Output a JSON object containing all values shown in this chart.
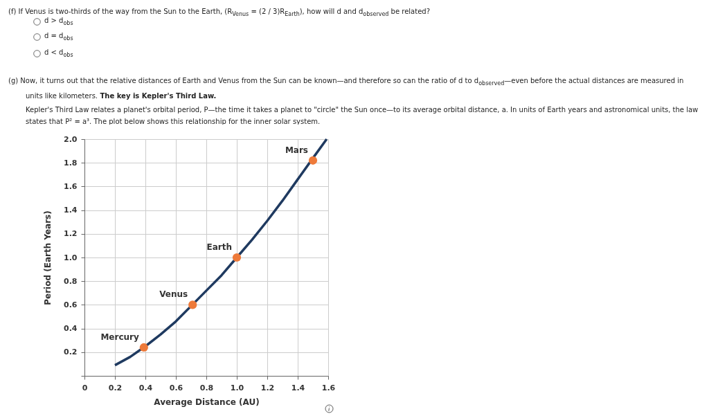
{
  "chart_data": {
    "type": "line",
    "xlabel": "Average Distance (AU)",
    "ylabel": "Period (Earth Years)",
    "xlim": [
      0,
      1.6
    ],
    "ylim": [
      0,
      2.0
    ],
    "xticks": [
      0,
      0.2,
      0.4,
      0.6,
      0.8,
      {
        "value": 1,
        "label": "1.0"
      },
      1.2,
      1.4,
      1.6
    ],
    "yticks": [
      {
        "value": 0,
        "label": null
      },
      0.2,
      0.4,
      0.6,
      0.8,
      {
        "value": 1,
        "label": "1.0"
      },
      1.2,
      1.4,
      1.6,
      1.8,
      {
        "value": 2,
        "label": "2.0"
      }
    ],
    "grid": true,
    "series": [
      {
        "type": "line",
        "color": "#1f3a60",
        "x": [
          0.2,
          0.3,
          0.4,
          0.5,
          0.6,
          0.7,
          0.8,
          0.9,
          1.0,
          1.1,
          1.2,
          1.3,
          1.4,
          1.5,
          1.59
        ],
        "values": [
          0.09,
          0.16,
          0.25,
          0.35,
          0.46,
          0.59,
          0.72,
          0.85,
          1.0,
          1.15,
          1.31,
          1.48,
          1.66,
          1.84,
          2.0
        ]
      },
      {
        "type": "scatter",
        "marker": "circle",
        "color": "#ee7a3a",
        "x": [
          0.39,
          0.71,
          1.0,
          1.5
        ],
        "values": [
          0.24,
          0.6,
          1.0,
          1.82
        ]
      }
    ],
    "annotations": [
      "(f)  If Venus is two-thirds of the way from the Sun to the Earth, (R$_{Venus}$ = (2 / 3)R$_{Earth}$), how will d and d$_{observed}$ be related?",
      "d > d$_{obs}$",
      "d = d$_{obs}$",
      "d < d$_{obs}$",
      "(g)  Now, it turns out that the relative distances of Earth and Venus from the Sun can be known—and therefore so can the ratio of d to d$_{observed}$—even before the actual distances are measured in units like kilometers.",
      "The key is Kepler's Third Law.",
      "Kepler's Third Law relates a planet's orbital period, P—the time it takes a planet to \"circle\" the Sun once—to its average orbital distance, a. In units of Earth years and astronomical units, the law states that P² = a³. The plot below shows this relationship for the inner solar system.",
      {
        "text": "Mercury",
        "x": 0.39,
        "y": 0.24
      },
      {
        "text": "Venus",
        "x": 0.71,
        "y": 0.6
      },
      {
        "text": "Earth",
        "x": 1.0,
        "y": 1.0
      },
      {
        "text": "Mars",
        "x": 1.5,
        "y": 1.82
      }
    ]
  }
}
